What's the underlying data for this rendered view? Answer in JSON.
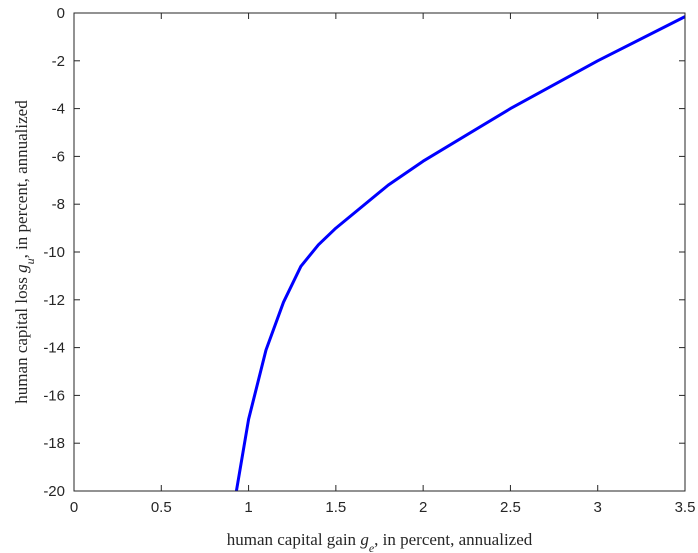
{
  "chart_data": {
    "type": "line",
    "title": "",
    "xlabel": {
      "before": "human capital gain ",
      "var": "g",
      "sub": "e",
      "after": ", in percent, annualized"
    },
    "ylabel": {
      "before": "human capital loss ",
      "var": "g",
      "sub": "u",
      "after": ", in percent, annualized"
    },
    "xlim": [
      0,
      3.5
    ],
    "ylim": [
      -20,
      0
    ],
    "xticks": [
      "0",
      "0.5",
      "1",
      "1.5",
      "2",
      "2.5",
      "3",
      "3.5"
    ],
    "yticks": [
      "0",
      "-2",
      "-4",
      "-6",
      "-8",
      "-10",
      "-12",
      "-14",
      "-16",
      "-18",
      "-20"
    ],
    "grid": false,
    "series": [
      {
        "color": "#0000ff",
        "points": [
          [
            0.93,
            -20.0
          ],
          [
            1.0,
            -17.0
          ],
          [
            1.1,
            -14.1
          ],
          [
            1.2,
            -12.1
          ],
          [
            1.3,
            -10.6
          ],
          [
            1.4,
            -9.7
          ],
          [
            1.5,
            -9.0
          ],
          [
            1.8,
            -7.2
          ],
          [
            2.0,
            -6.2
          ],
          [
            2.5,
            -4.0
          ],
          [
            3.0,
            -2.0
          ],
          [
            3.5,
            -0.15
          ]
        ]
      }
    ]
  }
}
